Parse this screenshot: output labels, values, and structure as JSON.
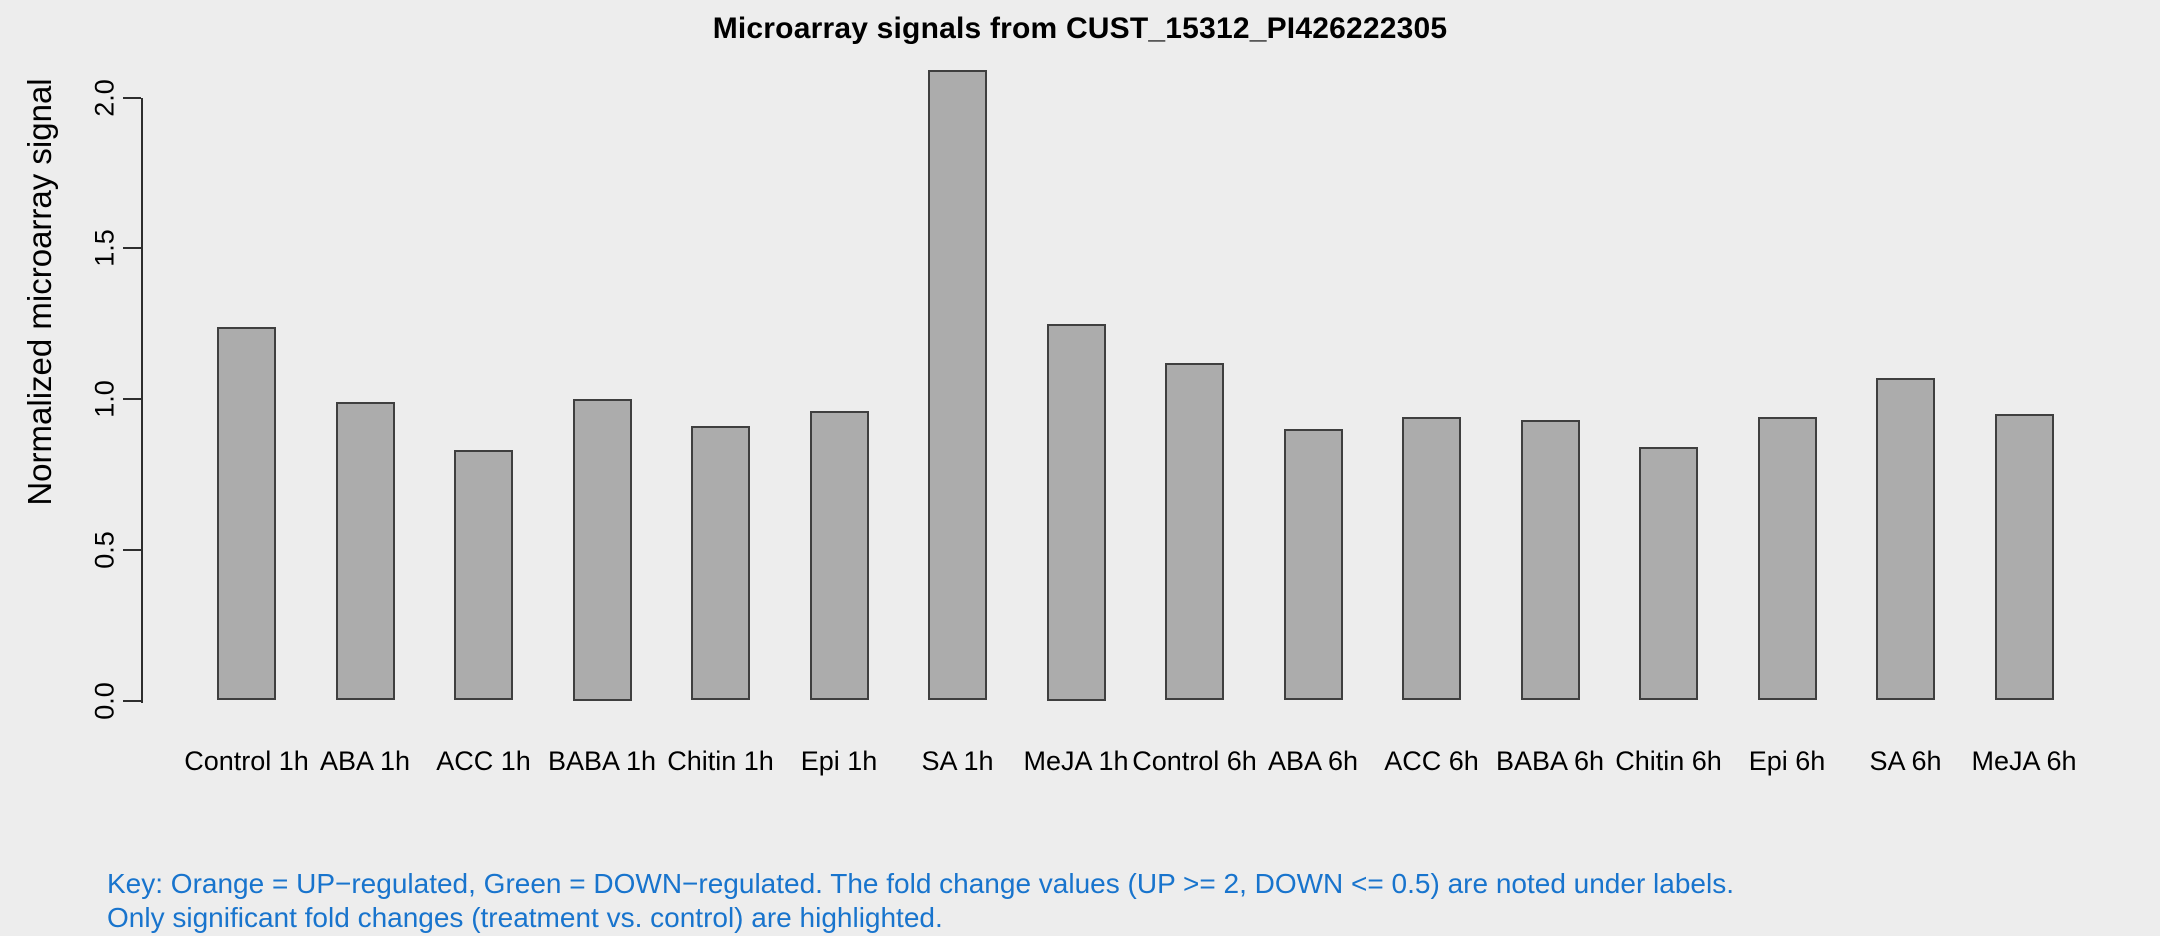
{
  "chart_data": {
    "type": "bar",
    "title": "Microarray signals from CUST_15312_PI426222305",
    "ylabel": "Normalized microarray signal",
    "xlabel": "",
    "categories": [
      "Control 1h",
      "ABA 1h",
      "ACC 1h",
      "BABA 1h",
      "Chitin 1h",
      "Epi 1h",
      "SA 1h",
      "MeJA 1h",
      "Control 6h",
      "ABA 6h",
      "ACC 6h",
      "BABA 6h",
      "Chitin 6h",
      "Epi 6h",
      "SA 6h",
      "MeJA 6h"
    ],
    "values": [
      1.24,
      0.99,
      0.83,
      1.0,
      0.91,
      0.96,
      2.09,
      1.25,
      1.12,
      0.9,
      0.94,
      0.93,
      0.84,
      0.94,
      1.07,
      0.95
    ],
    "ylim": [
      0,
      2.09
    ],
    "yticks": [
      "0.0",
      "0.5",
      "1.0",
      "1.5",
      "2.0"
    ],
    "ytick_values": [
      0.0,
      0.5,
      1.0,
      1.5,
      2.0
    ],
    "grid": false,
    "legend_position": "none",
    "bar_fill_color": "#ACACAC",
    "bar_border_color": "#3F3F3F",
    "background_color": "#EDEDED",
    "key_text_color": "#1874CD",
    "key_lines": [
      "Key: Orange = UP−regulated, Green = DOWN−regulated. The fold change values (UP >= 2, DOWN <= 0.5) are noted under labels.",
      "Only significant fold changes (treatment vs. control) are highlighted."
    ]
  }
}
